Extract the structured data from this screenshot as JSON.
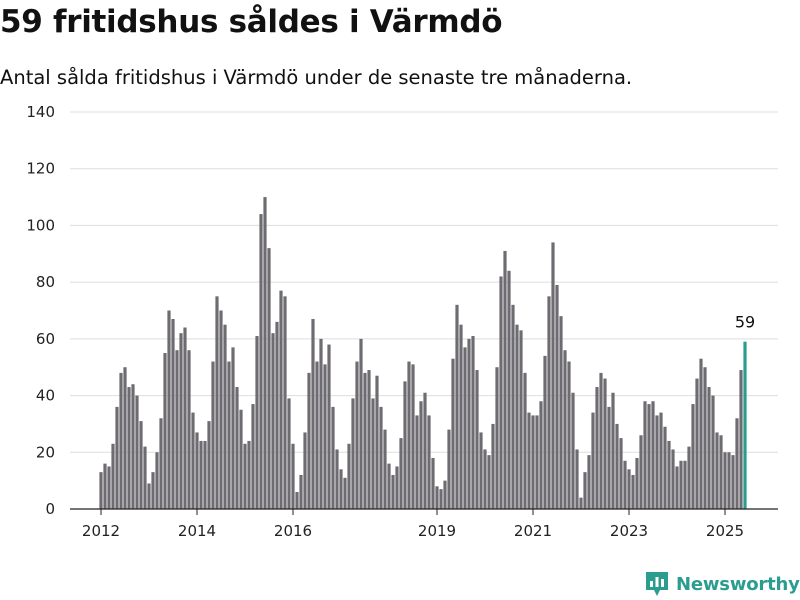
{
  "title": "59 fritidshus såldes i Värmdö",
  "subtitle": "Antal sålda fritidshus i Värmdö under de senaste tre månaderna.",
  "brand": {
    "name": "Newsworthy",
    "icon": "bar-chart-badge-icon",
    "color": "#2a9d8f"
  },
  "colors": {
    "bar": "#6d6c71",
    "highlight": "#2a9d8f",
    "grid": "#dddddd"
  },
  "chart_data": {
    "type": "bar",
    "title": "59 fritidshus såldes i Värmdö",
    "subtitle": "Antal sålda fritidshus i Värmdö under de senaste tre månaderna.",
    "xlabel": "",
    "ylabel": "",
    "ylim": [
      0,
      140
    ],
    "yticks": [
      0,
      20,
      40,
      60,
      80,
      100,
      120,
      140
    ],
    "grid": true,
    "legend": "none",
    "x_ticks": [
      {
        "label": "2012",
        "index": 0
      },
      {
        "label": "2014",
        "index": 24
      },
      {
        "label": "2016",
        "index": 48
      },
      {
        "label": "2019",
        "index": 84
      },
      {
        "label": "2021",
        "index": 108
      },
      {
        "label": "2023",
        "index": 132
      },
      {
        "label": "2025",
        "index": 156
      }
    ],
    "series": [
      {
        "values": [
          13,
          16,
          15,
          23,
          36,
          48,
          50,
          43,
          44,
          40,
          31,
          22,
          9,
          13,
          20,
          32,
          55,
          70,
          67,
          56,
          62,
          64,
          56,
          34,
          27,
          24,
          24,
          31,
          52,
          75,
          70,
          65,
          52,
          57,
          43,
          35,
          23,
          24,
          37,
          61,
          104,
          110,
          92,
          62,
          66,
          77,
          75,
          39,
          23,
          6,
          12,
          27,
          48,
          67,
          52,
          60,
          51,
          58,
          36,
          21,
          14,
          11,
          23,
          39,
          52,
          60,
          48,
          49,
          39,
          47,
          36,
          28,
          16,
          12,
          15,
          25,
          45,
          52,
          51,
          33,
          38,
          41,
          33,
          18,
          8,
          7,
          10,
          28,
          53,
          72,
          65,
          57,
          60,
          61,
          49,
          27,
          21,
          19,
          30,
          50,
          82,
          91,
          84,
          72,
          65,
          63,
          48,
          34,
          33,
          33,
          38,
          54,
          75,
          94,
          79,
          68,
          56,
          52,
          41,
          21,
          4,
          13,
          19,
          34,
          43,
          48,
          46,
          36,
          41,
          30,
          25,
          17,
          14,
          12,
          18,
          26,
          38,
          37,
          38,
          33,
          34,
          29,
          24,
          21,
          15,
          17,
          17,
          22,
          37,
          46,
          53,
          50,
          43,
          40,
          27,
          26,
          20,
          20,
          19,
          32,
          49,
          59
        ]
      }
    ],
    "annotation": {
      "label": "59",
      "value": 59,
      "index": 161
    }
  }
}
